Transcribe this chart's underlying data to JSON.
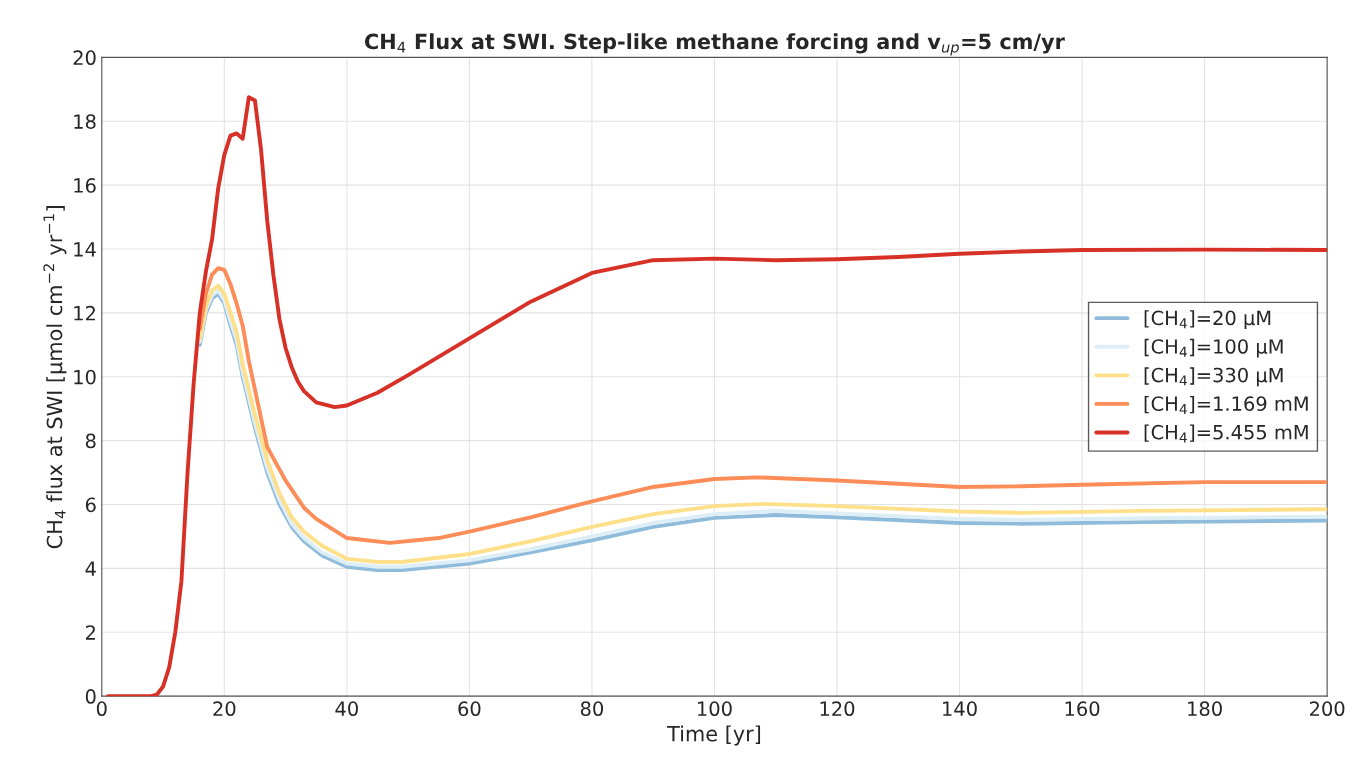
{
  "chart_data": {
    "type": "line",
    "title": "CH$_{4}$ Flux at SWI. Step-like methane forcing and v$_{up}$=5 cm/yr",
    "xlabel": "Time [yr]",
    "ylabel": "CH$_{4}$ flux at SWI [μmol cm$^{−2}$ yr$^{−1}$]",
    "xlim": [
      0,
      200
    ],
    "ylim": [
      0,
      20
    ],
    "xticks": [
      0,
      20,
      40,
      60,
      80,
      100,
      120,
      140,
      160,
      180,
      200
    ],
    "yticks": [
      0,
      2,
      4,
      6,
      8,
      10,
      12,
      14,
      16,
      18,
      20
    ],
    "grid": true,
    "legend": "right",
    "series": [
      {
        "name": "[CH$_{4}$]=20 μM",
        "color": "#8fbcdb",
        "x": [
          16,
          17,
          18,
          19,
          20,
          21,
          22,
          23,
          25,
          27,
          29,
          31,
          33,
          36,
          40,
          45,
          49,
          60,
          70,
          80,
          90,
          100,
          110,
          120,
          140,
          150,
          170,
          200
        ],
        "values": [
          11.0,
          12.0,
          12.45,
          12.6,
          12.3,
          11.6,
          11.0,
          10.0,
          8.4,
          7.0,
          6.0,
          5.3,
          4.85,
          4.4,
          4.05,
          3.95,
          3.95,
          4.15,
          4.5,
          4.88,
          5.3,
          5.58,
          5.67,
          5.6,
          5.42,
          5.4,
          5.45,
          5.5
        ]
      },
      {
        "name": "[CH$_{4}$]=100 μM",
        "color": "#deeef6",
        "x": [
          16,
          17,
          18,
          19,
          20,
          21,
          22,
          23,
          25,
          27,
          29,
          31,
          33,
          36,
          40,
          45,
          49,
          60,
          70,
          80,
          90,
          100,
          110,
          120,
          140,
          150,
          170,
          200
        ],
        "values": [
          11.1,
          12.1,
          12.55,
          12.7,
          12.4,
          11.75,
          11.15,
          10.15,
          8.55,
          7.15,
          6.15,
          5.4,
          4.95,
          4.5,
          4.15,
          4.05,
          4.05,
          4.25,
          4.6,
          5.0,
          5.42,
          5.7,
          5.8,
          5.72,
          5.55,
          5.52,
          5.57,
          5.62
        ]
      },
      {
        "name": "[CH$_{4}$]=330 μM",
        "color": "#fee08b",
        "x": [
          16,
          17,
          18,
          19,
          20,
          21,
          22,
          23,
          25,
          27,
          29,
          31,
          33,
          36,
          40,
          45,
          49,
          60,
          70,
          80,
          90,
          100,
          108,
          120,
          140,
          150,
          170,
          200
        ],
        "values": [
          11.2,
          12.2,
          12.7,
          12.85,
          12.6,
          12.0,
          11.4,
          10.4,
          8.8,
          7.4,
          6.35,
          5.6,
          5.15,
          4.7,
          4.3,
          4.2,
          4.2,
          4.45,
          4.85,
          5.3,
          5.7,
          5.95,
          6.02,
          5.95,
          5.78,
          5.74,
          5.8,
          5.85
        ]
      },
      {
        "name": "[CH$_{4}$]=1.169 mM",
        "color": "#fc8d59",
        "x": [
          16,
          17,
          18,
          19,
          20,
          21,
          22,
          23,
          24,
          25,
          27,
          30,
          33,
          35,
          40,
          47,
          55,
          60,
          70,
          80,
          90,
          100,
          107,
          120,
          140,
          150,
          160,
          180,
          200
        ],
        "values": [
          11.5,
          12.6,
          13.2,
          13.4,
          13.35,
          12.9,
          12.3,
          11.6,
          10.5,
          9.6,
          7.8,
          6.75,
          5.9,
          5.55,
          4.95,
          4.8,
          4.95,
          5.15,
          5.6,
          6.1,
          6.55,
          6.8,
          6.85,
          6.75,
          6.55,
          6.57,
          6.62,
          6.7,
          6.7
        ]
      },
      {
        "name": "[CH$_{4}$]=5.455 mM",
        "color": "#d73027",
        "x": [
          1,
          8,
          9,
          10,
          11,
          12,
          13,
          14,
          15,
          16,
          17,
          18,
          19,
          20,
          21,
          22,
          23,
          24,
          25,
          26,
          27,
          28,
          29,
          30,
          31,
          32,
          33,
          35,
          38,
          40,
          45,
          50,
          60,
          70,
          80,
          90,
          100,
          110,
          120,
          130,
          140,
          150,
          160,
          180,
          200
        ],
        "values": [
          0,
          0,
          0.05,
          0.3,
          0.9,
          2.0,
          3.6,
          7.0,
          9.8,
          12.0,
          13.3,
          14.3,
          15.9,
          16.95,
          17.55,
          17.62,
          17.45,
          18.75,
          18.65,
          17.1,
          14.9,
          13.2,
          11.8,
          10.9,
          10.3,
          9.85,
          9.55,
          9.2,
          9.05,
          9.1,
          9.5,
          10.05,
          11.2,
          12.35,
          13.25,
          13.65,
          13.7,
          13.65,
          13.68,
          13.75,
          13.85,
          13.92,
          13.97,
          13.98,
          13.97
        ]
      }
    ]
  }
}
